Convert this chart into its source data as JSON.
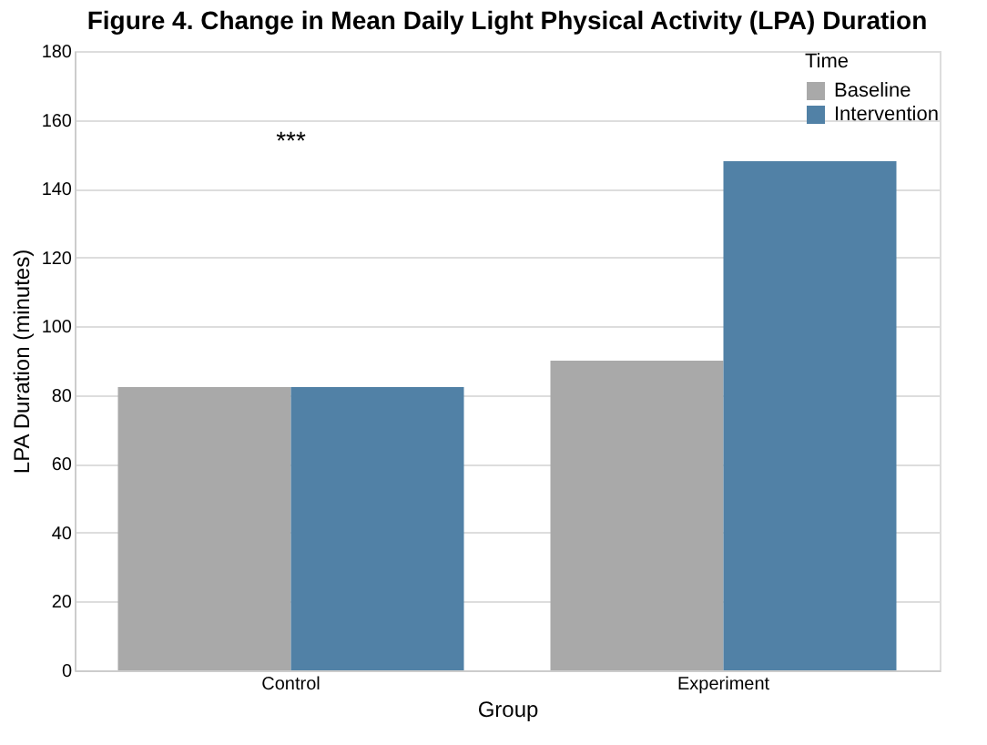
{
  "chart_data": {
    "type": "bar",
    "title": "Figure 4. Change in Mean Daily Light Physical Activity (LPA) Duration",
    "xlabel": "Group",
    "ylabel": "LPA Duration (minutes)",
    "legend_title": "Time",
    "categories": [
      "Control",
      "Experiment"
    ],
    "series": [
      {
        "name": "Baseline",
        "color": "#a9a9a9",
        "values": [
          82.3,
          90
        ]
      },
      {
        "name": "Intervention",
        "color": "#5181a6",
        "values": [
          82.3,
          148
        ]
      }
    ],
    "ylim": [
      0,
      180
    ],
    "yticks": [
      0,
      20,
      40,
      60,
      80,
      100,
      120,
      140,
      160,
      180
    ],
    "grid": "y",
    "legend": "top right",
    "annotations": [
      "***"
    ]
  }
}
